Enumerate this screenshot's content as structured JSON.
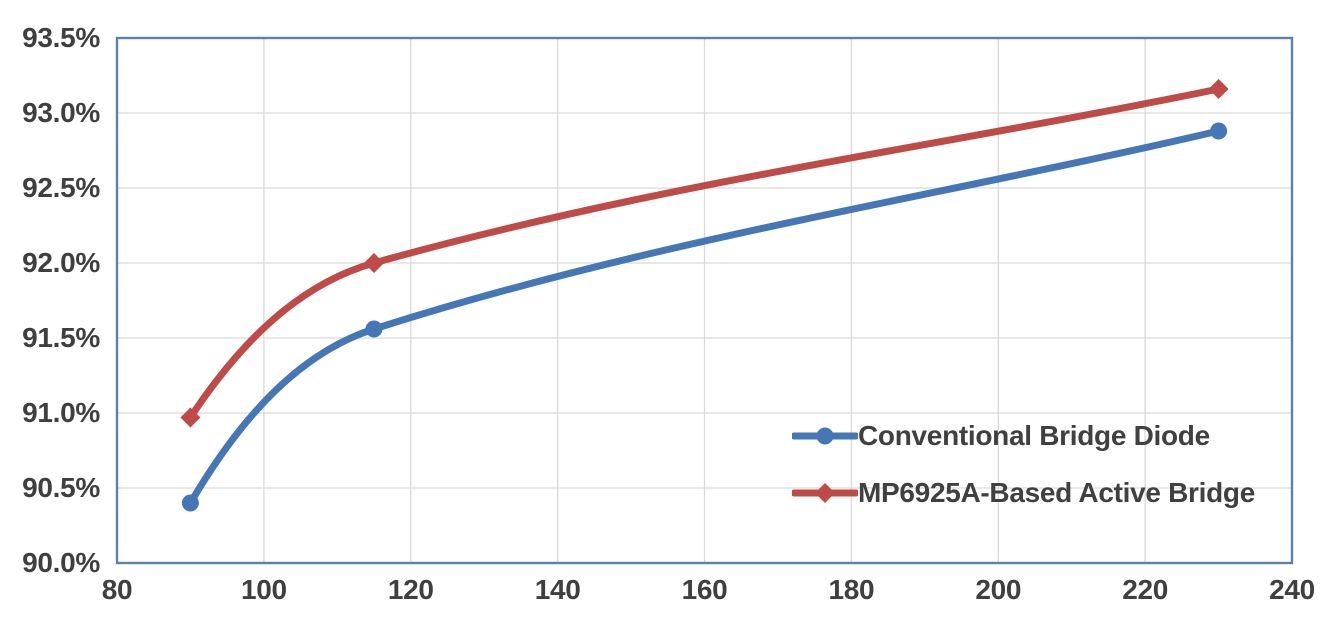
{
  "chart_data": {
    "type": "line",
    "title": "",
    "xlabel": "",
    "ylabel": "",
    "xlim": [
      80,
      240
    ],
    "ylim": [
      90.0,
      93.5
    ],
    "grid": true,
    "line_style": "smooth",
    "legend_position": "inside-lower-right",
    "x_ticks": [
      {
        "v": 80,
        "label": "80"
      },
      {
        "v": 100,
        "label": "100"
      },
      {
        "v": 120,
        "label": "120"
      },
      {
        "v": 140,
        "label": "140"
      },
      {
        "v": 160,
        "label": "160"
      },
      {
        "v": 180,
        "label": "180"
      },
      {
        "v": 200,
        "label": "200"
      },
      {
        "v": 220,
        "label": "220"
      },
      {
        "v": 240,
        "label": "240"
      }
    ],
    "y_ticks": [
      {
        "v": 90.0,
        "label": "90.0%"
      },
      {
        "v": 90.5,
        "label": "90.5%"
      },
      {
        "v": 91.0,
        "label": "91.0%"
      },
      {
        "v": 91.5,
        "label": "91.5%"
      },
      {
        "v": 92.0,
        "label": "92.0%"
      },
      {
        "v": 92.5,
        "label": "92.5%"
      },
      {
        "v": 93.0,
        "label": "93.0%"
      },
      {
        "v": 93.5,
        "label": "93.5%"
      }
    ],
    "series": [
      {
        "name": "Conventional Bridge Diode",
        "color": "#4576B5",
        "marker": "circle",
        "points": [
          {
            "x": 90,
            "y": 90.4
          },
          {
            "x": 115,
            "y": 91.56
          },
          {
            "x": 230,
            "y": 92.88
          }
        ]
      },
      {
        "name": "MP6925A-Based Active Bridge",
        "color": "#BE4B48",
        "marker": "diamond",
        "points": [
          {
            "x": 90,
            "y": 90.97
          },
          {
            "x": 115,
            "y": 92.0
          },
          {
            "x": 230,
            "y": 93.16
          }
        ]
      }
    ]
  },
  "colors": {
    "plot_border": "#5A7FB0",
    "gridline": "#D9D9D9",
    "tick_text": "#3F3F3F",
    "legend_text": "#404040",
    "background": "#FFFFFF"
  }
}
